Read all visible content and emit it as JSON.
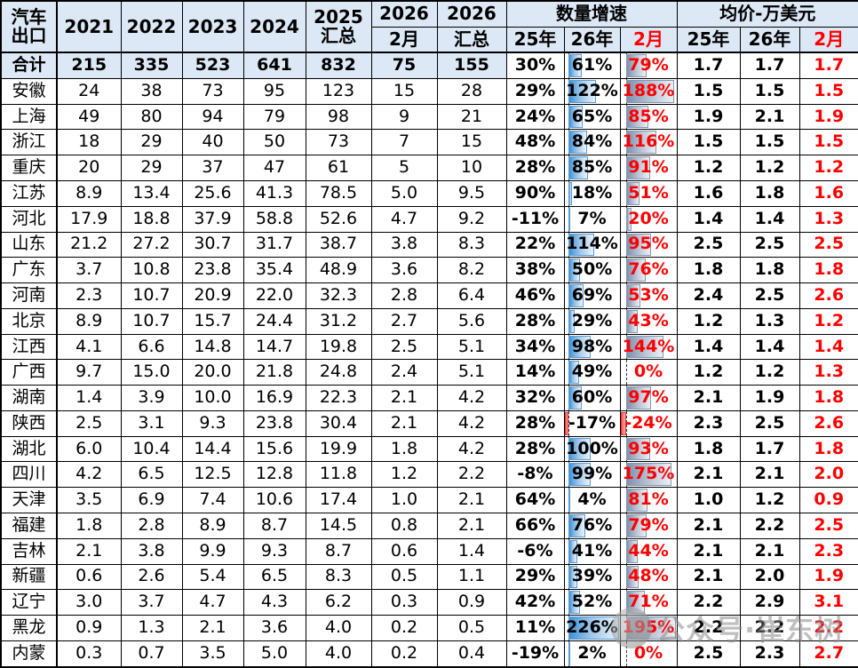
{
  "colors": {
    "header_bg": "#dce8f5",
    "accent_red": "#ff0000",
    "bar_blue": "#5b9bd5",
    "bar_slate": "#8496b0",
    "bar_negative": "#e53935",
    "watermark_gray": "#8c8c8c"
  },
  "watermark": {
    "text": "公众号·崔东树"
  },
  "chart_data": {
    "type": "table",
    "title": "汽车出口",
    "header": {
      "corner": [
        "汽车",
        "出口"
      ],
      "years": [
        "2021",
        "2022",
        "2023",
        "2024"
      ],
      "col_2025_total": [
        "2025",
        "汇总"
      ],
      "col_2026_feb": [
        "2026",
        "2月"
      ],
      "col_2026_total": [
        "2026",
        "汇总"
      ],
      "group_growth": "数量增速",
      "group_price": "均价-万美元",
      "sub_growth": [
        "25年",
        "26年",
        "2月"
      ],
      "sub_price": [
        "25年",
        "26年",
        "2月"
      ]
    },
    "bar_scales": {
      "g26": {
        "min": -17,
        "max": 226
      },
      "g2m": {
        "min": -24,
        "max": 195
      }
    },
    "rows": [
      {
        "name": "合计",
        "values": [
          "215",
          "335",
          "523",
          "641",
          "832",
          "75",
          "155"
        ],
        "growth": [
          "30%",
          "61%",
          "79%"
        ],
        "growth_num": [
          30,
          61,
          79
        ],
        "price": [
          "1.7",
          "1.7",
          "1.7"
        ]
      },
      {
        "name": "安徽",
        "values": [
          "24",
          "38",
          "73",
          "95",
          "123",
          "15",
          "28"
        ],
        "growth": [
          "29%",
          "122%",
          "188%"
        ],
        "growth_num": [
          29,
          122,
          188
        ],
        "price": [
          "1.5",
          "1.5",
          "1.5"
        ]
      },
      {
        "name": "上海",
        "values": [
          "49",
          "80",
          "94",
          "79",
          "98",
          "9",
          "21"
        ],
        "growth": [
          "24%",
          "65%",
          "85%"
        ],
        "growth_num": [
          24,
          65,
          85
        ],
        "price": [
          "1.9",
          "2.1",
          "1.9"
        ]
      },
      {
        "name": "浙江",
        "values": [
          "18",
          "29",
          "40",
          "50",
          "73",
          "7",
          "15"
        ],
        "growth": [
          "48%",
          "84%",
          "116%"
        ],
        "growth_num": [
          48,
          84,
          116
        ],
        "price": [
          "1.5",
          "1.5",
          "1.5"
        ]
      },
      {
        "name": "重庆",
        "values": [
          "20",
          "29",
          "37",
          "47",
          "61",
          "5",
          "10"
        ],
        "growth": [
          "28%",
          "85%",
          "91%"
        ],
        "growth_num": [
          28,
          85,
          91
        ],
        "price": [
          "1.2",
          "1.2",
          "1.2"
        ]
      },
      {
        "name": "江苏",
        "values": [
          "8.9",
          "13.4",
          "25.6",
          "41.3",
          "78.5",
          "5.0",
          "9.5"
        ],
        "growth": [
          "90%",
          "18%",
          "51%"
        ],
        "growth_num": [
          90,
          18,
          51
        ],
        "price": [
          "1.6",
          "1.8",
          "1.6"
        ]
      },
      {
        "name": "河北",
        "values": [
          "17.9",
          "18.8",
          "37.9",
          "58.8",
          "52.6",
          "4.7",
          "9.2"
        ],
        "growth": [
          "-11%",
          "7%",
          "20%"
        ],
        "growth_num": [
          -11,
          7,
          20
        ],
        "price": [
          "1.4",
          "1.4",
          "1.3"
        ]
      },
      {
        "name": "山东",
        "values": [
          "21.2",
          "27.2",
          "30.7",
          "31.7",
          "38.7",
          "3.8",
          "8.3"
        ],
        "growth": [
          "22%",
          "114%",
          "95%"
        ],
        "growth_num": [
          22,
          114,
          95
        ],
        "price": [
          "2.5",
          "2.5",
          "2.5"
        ]
      },
      {
        "name": "广东",
        "values": [
          "3.7",
          "10.8",
          "23.8",
          "35.4",
          "48.9",
          "3.6",
          "8.2"
        ],
        "growth": [
          "38%",
          "50%",
          "76%"
        ],
        "growth_num": [
          38,
          50,
          76
        ],
        "price": [
          "1.8",
          "1.8",
          "1.8"
        ]
      },
      {
        "name": "河南",
        "values": [
          "2.3",
          "10.7",
          "20.9",
          "22.0",
          "32.3",
          "2.8",
          "6.4"
        ],
        "growth": [
          "46%",
          "69%",
          "53%"
        ],
        "growth_num": [
          46,
          69,
          53
        ],
        "price": [
          "2.4",
          "2.5",
          "2.6"
        ]
      },
      {
        "name": "北京",
        "values": [
          "8.9",
          "10.7",
          "15.7",
          "24.4",
          "31.2",
          "2.7",
          "5.6"
        ],
        "growth": [
          "28%",
          "29%",
          "43%"
        ],
        "growth_num": [
          28,
          29,
          43
        ],
        "price": [
          "1.2",
          "1.3",
          "1.2"
        ]
      },
      {
        "name": "江西",
        "values": [
          "4.1",
          "6.6",
          "14.8",
          "14.7",
          "19.8",
          "2.5",
          "5.1"
        ],
        "growth": [
          "34%",
          "98%",
          "144%"
        ],
        "growth_num": [
          34,
          98,
          144
        ],
        "price": [
          "1.4",
          "1.4",
          "1.4"
        ]
      },
      {
        "name": "广西",
        "values": [
          "9.7",
          "15.0",
          "20.0",
          "21.8",
          "24.8",
          "2.4",
          "5.1"
        ],
        "growth": [
          "14%",
          "49%",
          "0%"
        ],
        "growth_num": [
          14,
          49,
          0
        ],
        "price": [
          "1.2",
          "1.2",
          "1.3"
        ]
      },
      {
        "name": "湖南",
        "values": [
          "1.4",
          "3.9",
          "10.0",
          "16.9",
          "22.3",
          "2.1",
          "4.2"
        ],
        "growth": [
          "32%",
          "60%",
          "97%"
        ],
        "growth_num": [
          32,
          60,
          97
        ],
        "price": [
          "2.1",
          "1.9",
          "1.8"
        ]
      },
      {
        "name": "陕西",
        "values": [
          "2.5",
          "3.1",
          "9.3",
          "23.8",
          "30.4",
          "2.1",
          "4.2"
        ],
        "growth": [
          "28%",
          "-17%",
          "-24%"
        ],
        "growth_num": [
          28,
          -17,
          -24
        ],
        "price": [
          "2.3",
          "2.5",
          "2.6"
        ]
      },
      {
        "name": "湖北",
        "values": [
          "6.0",
          "10.4",
          "14.4",
          "15.6",
          "19.9",
          "1.8",
          "4.2"
        ],
        "growth": [
          "28%",
          "100%",
          "93%"
        ],
        "growth_num": [
          28,
          100,
          93
        ],
        "price": [
          "1.8",
          "1.7",
          "1.8"
        ]
      },
      {
        "name": "四川",
        "values": [
          "4.2",
          "6.5",
          "12.5",
          "12.8",
          "11.8",
          "1.2",
          "2.2"
        ],
        "growth": [
          "-8%",
          "99%",
          "175%"
        ],
        "growth_num": [
          -8,
          99,
          175
        ],
        "price": [
          "2.1",
          "2.1",
          "2.0"
        ]
      },
      {
        "name": "天津",
        "values": [
          "3.5",
          "6.9",
          "7.4",
          "10.6",
          "17.4",
          "1.0",
          "2.1"
        ],
        "growth": [
          "64%",
          "4%",
          "81%"
        ],
        "growth_num": [
          64,
          4,
          81
        ],
        "price": [
          "1.0",
          "1.2",
          "0.9"
        ]
      },
      {
        "name": "福建",
        "values": [
          "1.8",
          "2.8",
          "8.9",
          "8.7",
          "14.5",
          "0.8",
          "2.1"
        ],
        "growth": [
          "66%",
          "76%",
          "79%"
        ],
        "growth_num": [
          66,
          76,
          79
        ],
        "price": [
          "2.1",
          "2.2",
          "2.5"
        ]
      },
      {
        "name": "吉林",
        "values": [
          "2.1",
          "3.8",
          "9.9",
          "9.3",
          "8.7",
          "0.6",
          "1.4"
        ],
        "growth": [
          "-6%",
          "41%",
          "44%"
        ],
        "growth_num": [
          -6,
          41,
          44
        ],
        "price": [
          "2.1",
          "2.1",
          "2.3"
        ]
      },
      {
        "name": "新疆",
        "values": [
          "0.6",
          "2.6",
          "5.4",
          "6.5",
          "8.3",
          "0.5",
          "1.1"
        ],
        "growth": [
          "29%",
          "39%",
          "48%"
        ],
        "growth_num": [
          29,
          39,
          48
        ],
        "price": [
          "2.1",
          "2.0",
          "1.9"
        ]
      },
      {
        "name": "辽宁",
        "values": [
          "3.0",
          "3.7",
          "4.7",
          "4.3",
          "6.2",
          "0.3",
          "0.9"
        ],
        "growth": [
          "42%",
          "52%",
          "71%"
        ],
        "growth_num": [
          42,
          52,
          71
        ],
        "price": [
          "2.2",
          "2.9",
          "3.1"
        ]
      },
      {
        "name": "黑龙",
        "values": [
          "0.9",
          "1.3",
          "2.1",
          "3.6",
          "4.0",
          "0.2",
          "0.5"
        ],
        "growth": [
          "11%",
          "226%",
          "195%"
        ],
        "growth_num": [
          11,
          226,
          195
        ],
        "price": [
          "2.2",
          "2.2",
          "2.2"
        ]
      },
      {
        "name": "内蒙",
        "values": [
          "0.3",
          "0.7",
          "3.5",
          "5.0",
          "4.0",
          "0.2",
          "0.4"
        ],
        "growth": [
          "-19%",
          "2%",
          "0%"
        ],
        "growth_num": [
          -19,
          2,
          0
        ],
        "price": [
          "2.5",
          "2.3",
          "2.7"
        ]
      }
    ]
  }
}
